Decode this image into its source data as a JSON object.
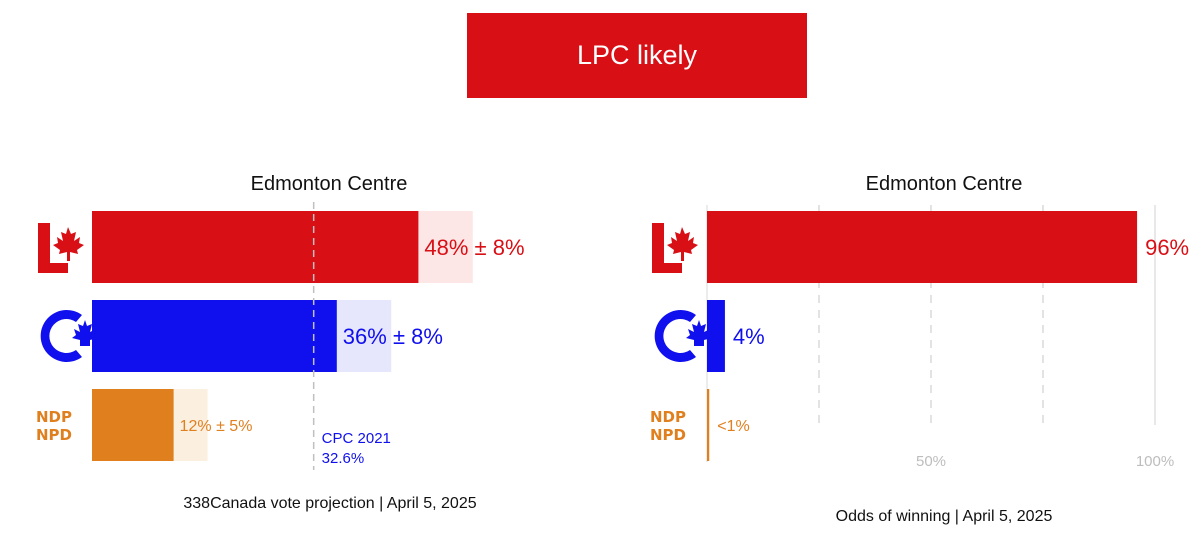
{
  "banner": {
    "text": "LPC likely",
    "color": "#d90f16"
  },
  "colors": {
    "LPC": "#d90f16",
    "LPC_light": "#fde6e6",
    "CPC": "#1010ee",
    "CPC_light": "#e6e6fc",
    "NDP": "#e07f1e",
    "NDP_light": "#fbefe0"
  },
  "chart_data": [
    {
      "type": "bar",
      "orientation": "horizontal",
      "title": "Edmonton Centre",
      "footer": "338Canada vote projection | April 5, 2025",
      "xlim": [
        0,
        60
      ],
      "grid": false,
      "series": [
        {
          "party": "LPC",
          "icon": "liberal-logo-icon",
          "value": 48,
          "margin": 8,
          "label": "48% ± 8%"
        },
        {
          "party": "CPC",
          "icon": "conservative-logo-icon",
          "value": 36,
          "margin": 8,
          "label": "36% ± 8%"
        },
        {
          "party": "NDP",
          "icon": "ndp-logo-icon",
          "logo_text": [
            "NDP",
            "NPD"
          ],
          "value": 12,
          "margin": 5,
          "label": "12% ± 5%"
        }
      ],
      "reference": {
        "party": "CPC",
        "value": 32.6,
        "label_line1": "CPC 2021",
        "label_line2": "32.6%"
      }
    },
    {
      "type": "bar",
      "orientation": "horizontal",
      "title": "Odds of winning",
      "title_text": "Edmonton Centre",
      "footer": "Odds of winning | April 5, 2025",
      "xlim": [
        0,
        100
      ],
      "grid": true,
      "ticks": [
        {
          "value": 50,
          "label": "50%"
        },
        {
          "value": 100,
          "label": "100%"
        }
      ],
      "series": [
        {
          "party": "LPC",
          "icon": "liberal-logo-icon",
          "value": 96,
          "label": "96%"
        },
        {
          "party": "CPC",
          "icon": "conservative-logo-icon",
          "value": 4,
          "label": "4%"
        },
        {
          "party": "NDP",
          "icon": "ndp-logo-icon",
          "logo_text": [
            "NDP",
            "NPD"
          ],
          "value": 0.5,
          "label": "<1%"
        }
      ]
    }
  ]
}
